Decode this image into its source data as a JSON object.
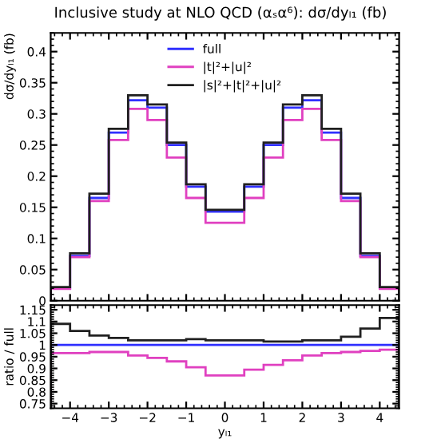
{
  "chart_data": [
    {
      "type": "histogram",
      "title": "Inclusive study at NLO QCD (αₛα⁶): dσ/dyₗ₁ (fb)",
      "ylabel": "dσ/dyₗ₁ (fb)",
      "bins": [
        -4.5,
        -4,
        -3.5,
        -3,
        -2.5,
        -2,
        -1.5,
        -1,
        -0.5,
        0.5,
        1,
        1.5,
        2,
        2.5,
        3,
        3.5,
        4,
        4.5
      ],
      "series": [
        {
          "name": "full",
          "color": "#3030ff",
          "values": [
            0.02,
            0.072,
            0.165,
            0.27,
            0.322,
            0.31,
            0.25,
            0.183,
            0.143,
            0.183,
            0.25,
            0.31,
            0.322,
            0.27,
            0.165,
            0.072,
            0.02
          ]
        },
        {
          "name": "|t|²+|u|²",
          "color": "#e040c0",
          "values": [
            0.019,
            0.07,
            0.16,
            0.258,
            0.308,
            0.29,
            0.23,
            0.165,
            0.125,
            0.165,
            0.23,
            0.29,
            0.308,
            0.258,
            0.16,
            0.07,
            0.019
          ]
        },
        {
          "name": "|s|²+|t|²+|u|²",
          "color": "#202020",
          "values": [
            0.022,
            0.076,
            0.172,
            0.276,
            0.33,
            0.315,
            0.254,
            0.187,
            0.146,
            0.187,
            0.254,
            0.315,
            0.33,
            0.276,
            0.172,
            0.076,
            0.022
          ]
        }
      ],
      "xlim": [
        -4.5,
        4.5
      ],
      "ylim": [
        0,
        0.43
      ],
      "yticks": [
        {
          "value": 0,
          "label": "0"
        },
        0.05,
        0.1,
        0.15,
        0.2,
        0.25,
        0.3,
        0.35,
        0.4
      ],
      "tick_labels": "y",
      "legend": "top",
      "grid": false
    },
    {
      "type": "histogram",
      "xlabel": "yₗ₁",
      "ylabel": "ratio / full",
      "bins": [
        -4.5,
        -4,
        -3.5,
        -3,
        -2.5,
        -2,
        -1.5,
        -1,
        -0.5,
        0.5,
        1,
        1.5,
        2,
        2.5,
        3,
        3.5,
        4,
        4.5
      ],
      "series": [
        {
          "color": "#3030ff",
          "values": [
            1,
            1,
            1,
            1,
            1,
            1,
            1,
            1,
            1,
            1,
            1,
            1,
            1,
            1,
            1,
            1,
            1
          ]
        },
        {
          "color": "#e040c0",
          "values": [
            0.965,
            0.965,
            0.97,
            0.97,
            0.955,
            0.945,
            0.93,
            0.905,
            0.87,
            0.895,
            0.915,
            0.935,
            0.955,
            0.965,
            0.97,
            0.975,
            0.98
          ]
        },
        {
          "color": "#202020",
          "values": [
            1.09,
            1.06,
            1.04,
            1.03,
            1.02,
            1.02,
            1.02,
            1.025,
            1.02,
            1.02,
            1.015,
            1.015,
            1.02,
            1.02,
            1.035,
            1.07,
            1.115
          ]
        }
      ],
      "xlim": [
        -4.5,
        4.5
      ],
      "ylim": [
        0.73,
        1.17
      ],
      "xticks": [
        {
          "value": -4,
          "label": "−4"
        },
        {
          "value": -3,
          "label": "−3"
        },
        {
          "value": -2,
          "label": "−2"
        },
        {
          "value": -1,
          "label": "−1"
        },
        0,
        1,
        2,
        3,
        4
      ],
      "yticks": [
        0.75,
        0.8,
        0.85,
        0.9,
        0.95,
        1,
        1.05,
        1.1,
        1.15
      ],
      "legend": false,
      "grid": false
    }
  ]
}
